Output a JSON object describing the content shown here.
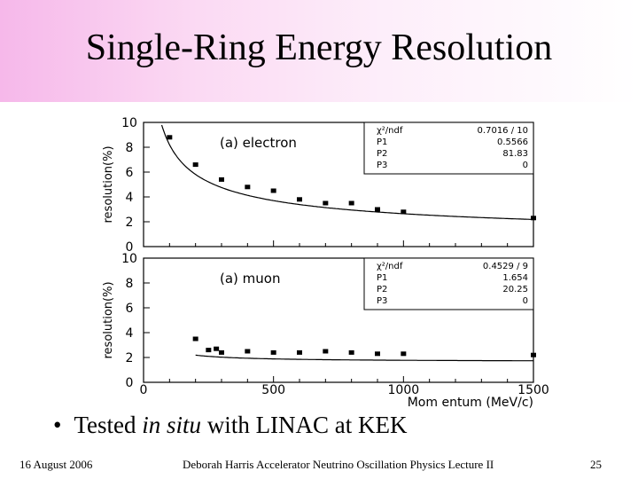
{
  "slide": {
    "title": "Single-Ring Energy Resolution",
    "bullet_prefix": "Tested ",
    "bullet_italic": "in situ",
    "bullet_suffix": " with LINAC at KEK",
    "footer_date": "16 August 2006",
    "footer_center": "Deborah Harris  Accelerator Neutrino Oscillation Physics Lecture II",
    "page_number": "25"
  },
  "chart_data": [
    {
      "type": "scatter",
      "label": "(a) electron",
      "ylabel": "resolution(%)",
      "xlim": [
        0,
        1500
      ],
      "ylim": [
        0,
        10
      ],
      "yticks": [
        0,
        2,
        4,
        6,
        8,
        10
      ],
      "points": [
        {
          "x": 100,
          "y": 8.8
        },
        {
          "x": 200,
          "y": 6.6
        },
        {
          "x": 300,
          "y": 5.4
        },
        {
          "x": 400,
          "y": 4.8
        },
        {
          "x": 500,
          "y": 4.5
        },
        {
          "x": 600,
          "y": 3.8
        },
        {
          "x": 700,
          "y": 3.5
        },
        {
          "x": 800,
          "y": 3.5
        },
        {
          "x": 900,
          "y": 3.0
        },
        {
          "x": 1000,
          "y": 2.8
        },
        {
          "x": 1500,
          "y": 2.3
        }
      ],
      "fit": {
        "P1": 0.5566,
        "P2": 81.83,
        "P3": 0
      },
      "fit_box": {
        "rows": [
          {
            "name": "χ²/ndf",
            "value": "0.7016  /  10"
          },
          {
            "name": "P1",
            "value": "0.5566"
          },
          {
            "name": "P2",
            "value": "81.83"
          },
          {
            "name": "P3",
            "value": "0"
          }
        ]
      }
    },
    {
      "type": "scatter",
      "label": "(a) muon",
      "ylabel": "resolution(%)",
      "xlabel": "Mom entum (MeV/c)",
      "xlim": [
        0,
        1500
      ],
      "ylim": [
        0,
        10
      ],
      "xticks": [
        0,
        500,
        1000,
        1500
      ],
      "yticks": [
        0,
        2,
        4,
        6,
        8,
        10
      ],
      "points": [
        {
          "x": 200,
          "y": 3.5
        },
        {
          "x": 250,
          "y": 2.6
        },
        {
          "x": 280,
          "y": 2.7
        },
        {
          "x": 300,
          "y": 2.4
        },
        {
          "x": 400,
          "y": 2.5
        },
        {
          "x": 500,
          "y": 2.4
        },
        {
          "x": 600,
          "y": 2.4
        },
        {
          "x": 700,
          "y": 2.5
        },
        {
          "x": 800,
          "y": 2.4
        },
        {
          "x": 900,
          "y": 2.3
        },
        {
          "x": 1000,
          "y": 2.3
        },
        {
          "x": 1500,
          "y": 2.2
        }
      ],
      "fit": {
        "P1": 1.654,
        "P2": 20.25,
        "P3": 0
      },
      "fit_box": {
        "rows": [
          {
            "name": "χ²/ndf",
            "value": "0.4529  /  9"
          },
          {
            "name": "P1",
            "value": "1.654"
          },
          {
            "name": "P2",
            "value": "20.25"
          },
          {
            "name": "P3",
            "value": "0"
          }
        ]
      }
    }
  ]
}
